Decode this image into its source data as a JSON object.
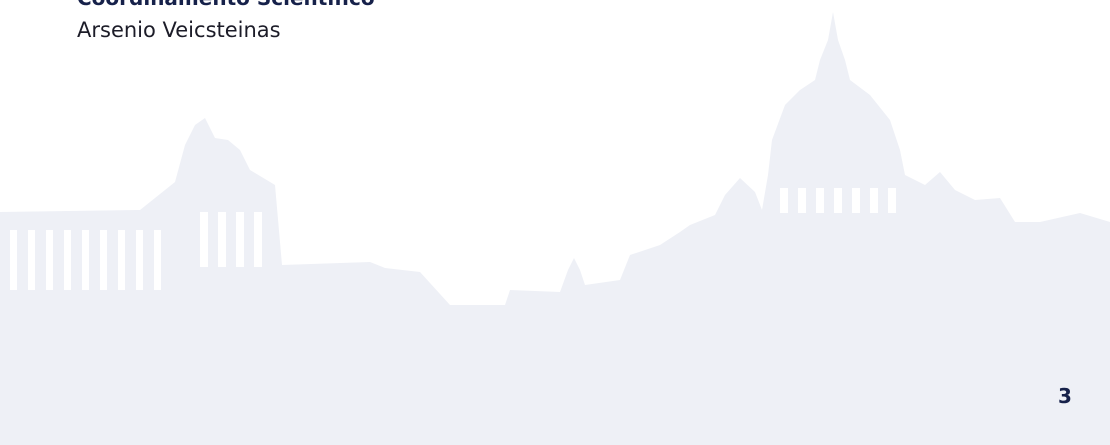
{
  "heading": "Coordinamento Scientifico",
  "author": "Arsenio Veicsteinas",
  "page_number": 3
}
